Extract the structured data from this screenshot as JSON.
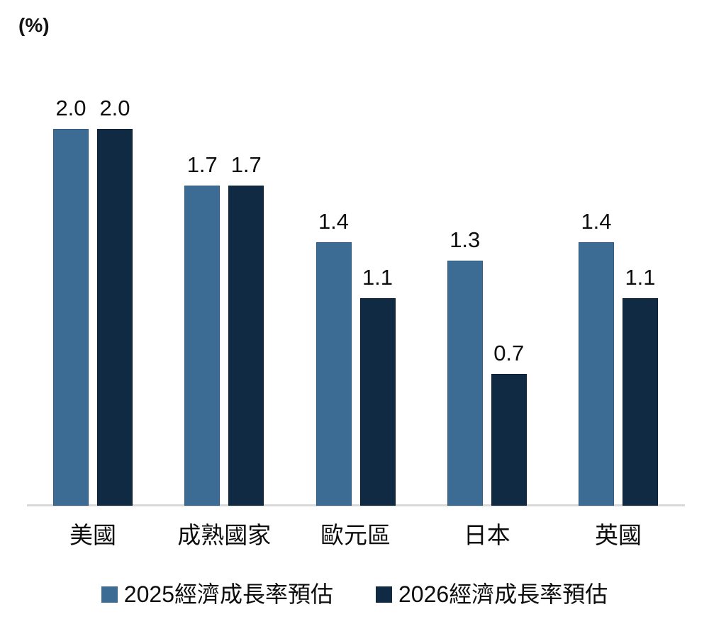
{
  "unit_label": "(%)",
  "chart_data": {
    "type": "bar",
    "title": "",
    "xlabel": "",
    "ylabel": "(%)",
    "categories": [
      "美國",
      "成熟國家",
      "歐元區",
      "日本",
      "英國"
    ],
    "series": [
      {
        "name": "2025經濟成長率預估",
        "color": "#3c6c93",
        "border_color": "#2f5c80",
        "values": [
          2.0,
          1.7,
          1.4,
          1.3,
          1.4
        ]
      },
      {
        "name": "2026經濟成長率預估",
        "color": "#112a43",
        "border_color": "#0c2036",
        "values": [
          2.0,
          1.7,
          1.1,
          0.7,
          1.1
        ]
      }
    ],
    "value_label_decimals": 1,
    "ylim": [
      0,
      2.25
    ],
    "grid": false,
    "axis_line_color": "#d9d9d9",
    "legend_position": "bottom"
  }
}
